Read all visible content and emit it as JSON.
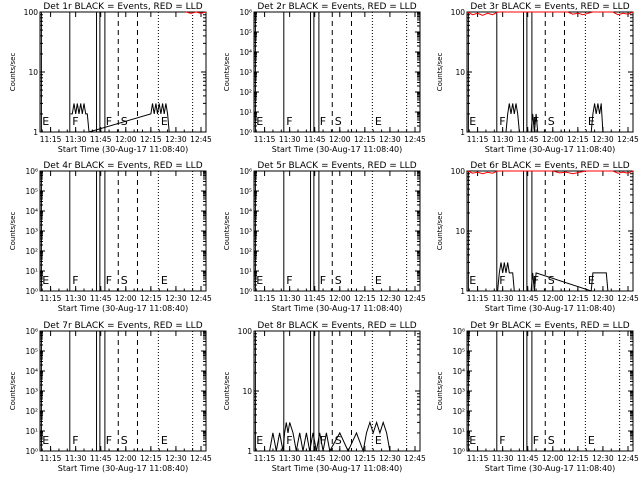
{
  "chart_data": [
    {
      "type": "line",
      "title": "Det 1r BLACK = Events, RED = LLD",
      "ylabel": "Counts/sec",
      "xlabel": "Start Time (30-Aug-17 11:08:40)",
      "yscale": "log",
      "yticks": [
        "1",
        "10",
        "100"
      ],
      "xticks": [
        "11:15",
        "11:30",
        "11:45",
        "12:00",
        "12:15",
        "12:30",
        "12:45"
      ],
      "xlim": [
        "11:08:40",
        "12:48:00"
      ],
      "markers": [
        "E",
        "F",
        "F",
        "S",
        "E"
      ],
      "series": [
        {
          "name": "Events",
          "color": "#000000",
          "x": [
            "11:27",
            "11:28",
            "11:29",
            "11:30",
            "11:31",
            "11:32",
            "11:33",
            "11:34",
            "11:35",
            "11:36",
            "11:37",
            "11:38",
            "12:15",
            "12:16",
            "12:17",
            "12:18",
            "12:19",
            "12:20",
            "12:21",
            "12:22",
            "12:23",
            "12:24",
            "12:25",
            "12:26"
          ],
          "values": [
            2,
            2,
            3,
            2,
            3,
            2,
            3,
            2,
            3,
            2,
            2,
            1,
            2,
            3,
            2,
            3,
            2,
            3,
            2,
            3,
            2,
            3,
            2,
            1
          ]
        },
        {
          "name": "LLD",
          "color": "#ff0000",
          "x": [
            "12:36",
            "12:39",
            "12:42",
            "12:45",
            "12:48"
          ],
          "values": [
            100,
            95,
            100,
            95,
            100
          ]
        }
      ]
    },
    {
      "type": "line",
      "title": "Det 2r BLACK = Events, RED = LLD",
      "ylabel": "Counts/sec",
      "xlabel": "Start Time (30-Aug-17 11:08:40)",
      "yscale": "log",
      "yticks": [
        "10⁰",
        "10¹",
        "10²",
        "10³",
        "10⁴",
        "10⁵",
        "10⁶"
      ],
      "xticks": [
        "11:15",
        "11:30",
        "11:45",
        "12:00",
        "12:15",
        "12:30",
        "12:45"
      ],
      "xlim": [
        "11:08:40",
        "12:48:00"
      ],
      "markers": [
        "E",
        "F",
        "F",
        "S",
        "E"
      ],
      "series": []
    },
    {
      "type": "line",
      "title": "Det 3r BLACK = Events, RED = LLD",
      "ylabel": "Counts/sec",
      "xlabel": "Start Time (30-Aug-17 11:08:40)",
      "yscale": "log",
      "yticks": [
        "1",
        "10",
        "100"
      ],
      "xticks": [
        "11:15",
        "11:30",
        "11:45",
        "12:00",
        "12:15",
        "12:30",
        "12:45"
      ],
      "xlim": [
        "11:08:40",
        "12:48:00"
      ],
      "markers": [
        "E",
        "F",
        "F",
        "S",
        "E"
      ],
      "series": [
        {
          "name": "Events",
          "color": "#000000",
          "x": [
            "11:32",
            "11:33",
            "11:34",
            "11:35",
            "11:36",
            "11:37",
            "11:38",
            "11:39",
            "11:40",
            "11:47",
            "11:48",
            "11:49",
            "11:50",
            "11:51",
            "12:23",
            "12:24",
            "12:25",
            "12:26",
            "12:27",
            "12:28",
            "12:29",
            "12:30"
          ],
          "values": [
            1,
            2,
            3,
            2,
            3,
            2,
            3,
            2,
            1,
            1,
            2,
            1,
            2,
            1,
            1,
            2,
            3,
            2,
            3,
            2,
            3,
            1
          ]
        },
        {
          "name": "LLD",
          "color": "#ff0000",
          "x": [
            "11:09",
            "11:12",
            "11:15",
            "11:18",
            "11:21",
            "11:24",
            "11:27",
            "12:09",
            "12:12",
            "12:15",
            "12:18",
            "12:21",
            "12:24",
            "12:36",
            "12:39",
            "12:42",
            "12:45",
            "12:48"
          ],
          "values": [
            100,
            90,
            95,
            88,
            95,
            90,
            100,
            100,
            92,
            96,
            90,
            95,
            100,
            100,
            90,
            95,
            92,
            100
          ]
        }
      ]
    },
    {
      "type": "line",
      "title": "Det 4r BLACK = Events, RED = LLD",
      "ylabel": "Counts/sec",
      "xlabel": "Start Time (30-Aug-17 11:08:40)",
      "yscale": "log",
      "yticks": [
        "10⁰",
        "10¹",
        "10²",
        "10³",
        "10⁴",
        "10⁵",
        "10⁶"
      ],
      "xticks": [
        "11:15",
        "11:30",
        "11:45",
        "12:00",
        "12:15",
        "12:30",
        "12:45"
      ],
      "xlim": [
        "11:08:40",
        "12:48:00"
      ],
      "markers": [
        "E",
        "F",
        "F",
        "S",
        "E"
      ],
      "series": []
    },
    {
      "type": "line",
      "title": "Det 5r BLACK = Events, RED = LLD",
      "ylabel": "Counts/sec",
      "xlabel": "Start Time (30-Aug-17 11:08:40)",
      "yscale": "log",
      "yticks": [
        "10⁰",
        "10¹",
        "10²",
        "10³",
        "10⁴",
        "10⁵",
        "10⁶"
      ],
      "xticks": [
        "11:15",
        "11:30",
        "11:45",
        "12:00",
        "12:15",
        "12:30",
        "12:45"
      ],
      "xlim": [
        "11:08:40",
        "12:48:00"
      ],
      "markers": [
        "E",
        "F",
        "F",
        "S",
        "E"
      ],
      "series": []
    },
    {
      "type": "line",
      "title": "Det 6r BLACK = Events, RED = LLD",
      "ylabel": "Counts/sec",
      "xlabel": "Start Time (30-Aug-17 11:08:40)",
      "yscale": "log",
      "yticks": [
        "1",
        "10",
        "100"
      ],
      "xticks": [
        "11:15",
        "11:30",
        "11:45",
        "12:00",
        "12:15",
        "12:30",
        "12:45"
      ],
      "xlim": [
        "11:08:40",
        "12:48:00"
      ],
      "markers": [
        "E",
        "F",
        "F",
        "S",
        "E"
      ],
      "series": [
        {
          "name": "Events",
          "color": "#000000",
          "x": [
            "11:27",
            "11:28",
            "11:29",
            "11:30",
            "11:31",
            "11:32",
            "11:33",
            "11:34",
            "11:35",
            "11:36",
            "11:37",
            "11:47",
            "11:48",
            "11:49",
            "11:50",
            "12:23",
            "12:24",
            "12:26",
            "12:28",
            "12:30",
            "12:32",
            "12:33"
          ],
          "values": [
            1,
            2,
            3,
            2,
            3,
            2,
            3,
            2,
            2,
            2,
            1,
            1,
            2,
            1,
            2,
            1,
            2,
            2,
            2,
            2,
            2,
            1
          ]
        },
        {
          "name": "LLD",
          "color": "#ff0000",
          "x": [
            "11:09",
            "11:12",
            "11:15",
            "11:18",
            "11:21",
            "11:24",
            "11:27",
            "12:00",
            "12:04",
            "12:08",
            "12:12",
            "12:16",
            "12:20",
            "12:36",
            "12:39",
            "12:42",
            "12:45",
            "12:48"
          ],
          "values": [
            100,
            92,
            96,
            90,
            95,
            92,
            100,
            100,
            93,
            96,
            90,
            95,
            100,
            100,
            92,
            96,
            92,
            100
          ]
        }
      ]
    },
    {
      "type": "line",
      "title": "Det 7r BLACK = Events, RED = LLD",
      "ylabel": "Counts/sec",
      "xlabel": "Start Time (30-Aug-17 11:08:40)",
      "yscale": "log",
      "yticks": [
        "10⁰",
        "10¹",
        "10²",
        "10³",
        "10⁴",
        "10⁵",
        "10⁶"
      ],
      "xticks": [
        "11:15",
        "11:30",
        "11:45",
        "12:00",
        "12:15",
        "12:30",
        "12:45"
      ],
      "xlim": [
        "11:08:40",
        "12:48:00"
      ],
      "markers": [
        "E",
        "F",
        "F",
        "S",
        "E"
      ],
      "series": []
    },
    {
      "type": "line",
      "title": "Det 8r BLACK = Events, RED = LLD",
      "ylabel": "Counts/sec",
      "xlabel": "Start Time (30-Aug-17 11:08:40)",
      "yscale": "log",
      "yticks": [
        "1",
        "10",
        "100"
      ],
      "xticks": [
        "11:15",
        "11:30",
        "11:45",
        "12:00",
        "12:15",
        "12:30",
        "12:45"
      ],
      "xlim": [
        "11:08:40",
        "12:48:00"
      ],
      "markers": [
        "E",
        "F",
        "F",
        "S",
        "E"
      ],
      "series": [
        {
          "name": "Events",
          "color": "#000000",
          "x": [
            "11:18",
            "11:20",
            "11:22",
            "11:24",
            "11:26",
            "11:27",
            "11:28",
            "11:29",
            "11:30",
            "11:32",
            "11:34",
            "11:36",
            "11:38",
            "11:40",
            "11:42",
            "11:44",
            "11:46",
            "11:48",
            "11:50",
            "11:52",
            "11:54",
            "12:00",
            "12:05",
            "12:10",
            "12:14",
            "12:16",
            "12:18",
            "12:20",
            "12:22",
            "12:24",
            "12:26",
            "12:28",
            "12:30",
            "12:35",
            "12:40"
          ],
          "values": [
            1,
            2,
            1,
            2,
            1,
            2,
            3,
            2,
            3,
            2,
            1,
            2,
            1,
            2,
            1,
            2,
            1,
            2,
            1,
            2,
            1,
            2,
            1,
            2,
            1,
            2,
            3,
            2,
            3,
            2,
            3,
            2,
            1,
            1,
            1
          ]
        }
      ]
    },
    {
      "type": "line",
      "title": "Det 9r BLACK = Events, RED = LLD",
      "ylabel": "Counts/sec",
      "xlabel": "Start Time (30-Aug-17 11:08:40)",
      "yscale": "log",
      "yticks": [
        "10⁰",
        "10¹",
        "10²",
        "10³",
        "10⁴",
        "10⁵",
        "10⁶"
      ],
      "xticks": [
        "11:15",
        "11:30",
        "11:45",
        "12:00",
        "12:15",
        "12:30",
        "12:45"
      ],
      "xlim": [
        "11:08:40",
        "12:48:00"
      ],
      "markers": [
        "E",
        "F",
        "F",
        "S",
        "E"
      ],
      "series": []
    }
  ]
}
